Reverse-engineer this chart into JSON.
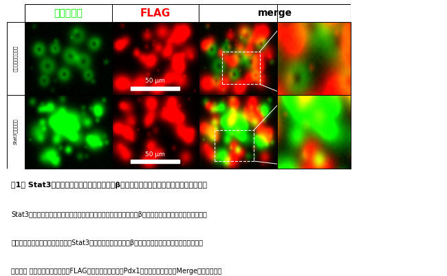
{
  "title_bold": "図1　 Stat3欠失マウスでは膵腺房細胞からβ細胞へのリプログラミングが亢進している",
  "body_line1": "Stat3欠失マウス（下段）では対照マウス（上段）と比較して新生β細胞数が増加している。また拡大図",
  "body_line2": "（下段右端）にみられるように、Stat3欠失マウスでは数個のβ細胞が一塊となった膵島様構造が散見",
  "body_line3": "される。 緑：インスリン、赤：FLAG（外因性に転写因子Pdx1を発現した細胞）、Merge：重ね合わせ",
  "col_labels": [
    "インスリン",
    "FLAG",
    "merge"
  ],
  "col_label_colors": [
    "#00ee00",
    "#ff0000",
    "#000000"
  ],
  "scale_bar_text": "50 μm",
  "bg_color": "#ffffff",
  "figure_width": 6.5,
  "figure_height": 4.01,
  "dpi": 100,
  "col_label_fontsize": 10,
  "title_fontsize": 8.0,
  "body_fontsize": 7.0,
  "row1_label": [
    "コントロール",
    "マウス"
  ],
  "row2_label_italic": "Stat3",
  "row2_label_rest": "欠損マウス"
}
